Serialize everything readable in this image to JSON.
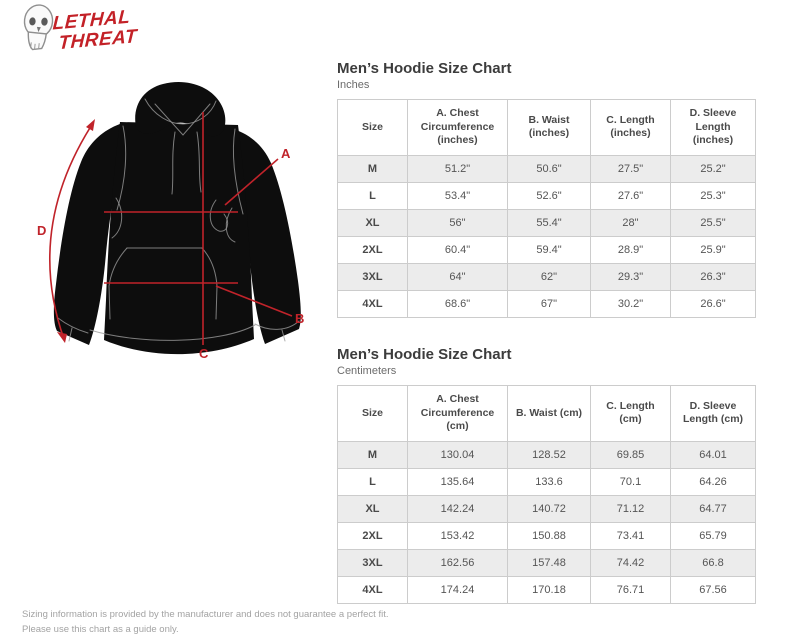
{
  "brand": {
    "name_line1": "LETHAL",
    "name_line2": "THREAT"
  },
  "diagram": {
    "labels": {
      "a": "A",
      "b": "B",
      "c": "C",
      "d": "D"
    }
  },
  "tables": [
    {
      "title": "Men’s Hoodie Size Chart",
      "subtitle": "Inches",
      "columns": [
        "Size",
        "A. Chest Circumference (inches)",
        "B. Waist (inches)",
        "C. Length (inches)",
        "D. Sleeve Length (inches)"
      ],
      "rows": [
        [
          "M",
          "51.2\"",
          "50.6\"",
          "27.5\"",
          "25.2\""
        ],
        [
          "L",
          "53.4\"",
          "52.6\"",
          "27.6\"",
          "25.3\""
        ],
        [
          "XL",
          "56\"",
          "55.4\"",
          "28\"",
          "25.5\""
        ],
        [
          "2XL",
          "60.4\"",
          "59.4\"",
          "28.9\"",
          "25.9\""
        ],
        [
          "3XL",
          "64\"",
          "62\"",
          "29.3\"",
          "26.3\""
        ],
        [
          "4XL",
          "68.6\"",
          "67\"",
          "30.2\"",
          "26.6\""
        ]
      ]
    },
    {
      "title": "Men’s Hoodie Size Chart",
      "subtitle": "Centimeters",
      "columns": [
        "Size",
        "A. Chest Circumference (cm)",
        "B. Waist (cm)",
        "C. Length (cm)",
        "D. Sleeve Length (cm)"
      ],
      "rows": [
        [
          "M",
          "130.04",
          "128.52",
          "69.85",
          "64.01"
        ],
        [
          "L",
          "135.64",
          "133.6",
          "70.1",
          "64.26"
        ],
        [
          "XL",
          "142.24",
          "140.72",
          "71.12",
          "64.77"
        ],
        [
          "2XL",
          "153.42",
          "150.88",
          "73.41",
          "65.79"
        ],
        [
          "3XL",
          "162.56",
          "157.48",
          "74.42",
          "66.8"
        ],
        [
          "4XL",
          "174.24",
          "170.18",
          "76.71",
          "67.56"
        ]
      ]
    }
  ],
  "footer": {
    "line1": "Sizing information is provided by the manufacturer and does not guarantee a perfect fit.",
    "line2": "Please use this chart as a guide only."
  },
  "colors": {
    "accent_red": "#c0232a",
    "logo_red": "#c32127",
    "row_alt": "#ececec",
    "table_border": "#cccccc"
  }
}
